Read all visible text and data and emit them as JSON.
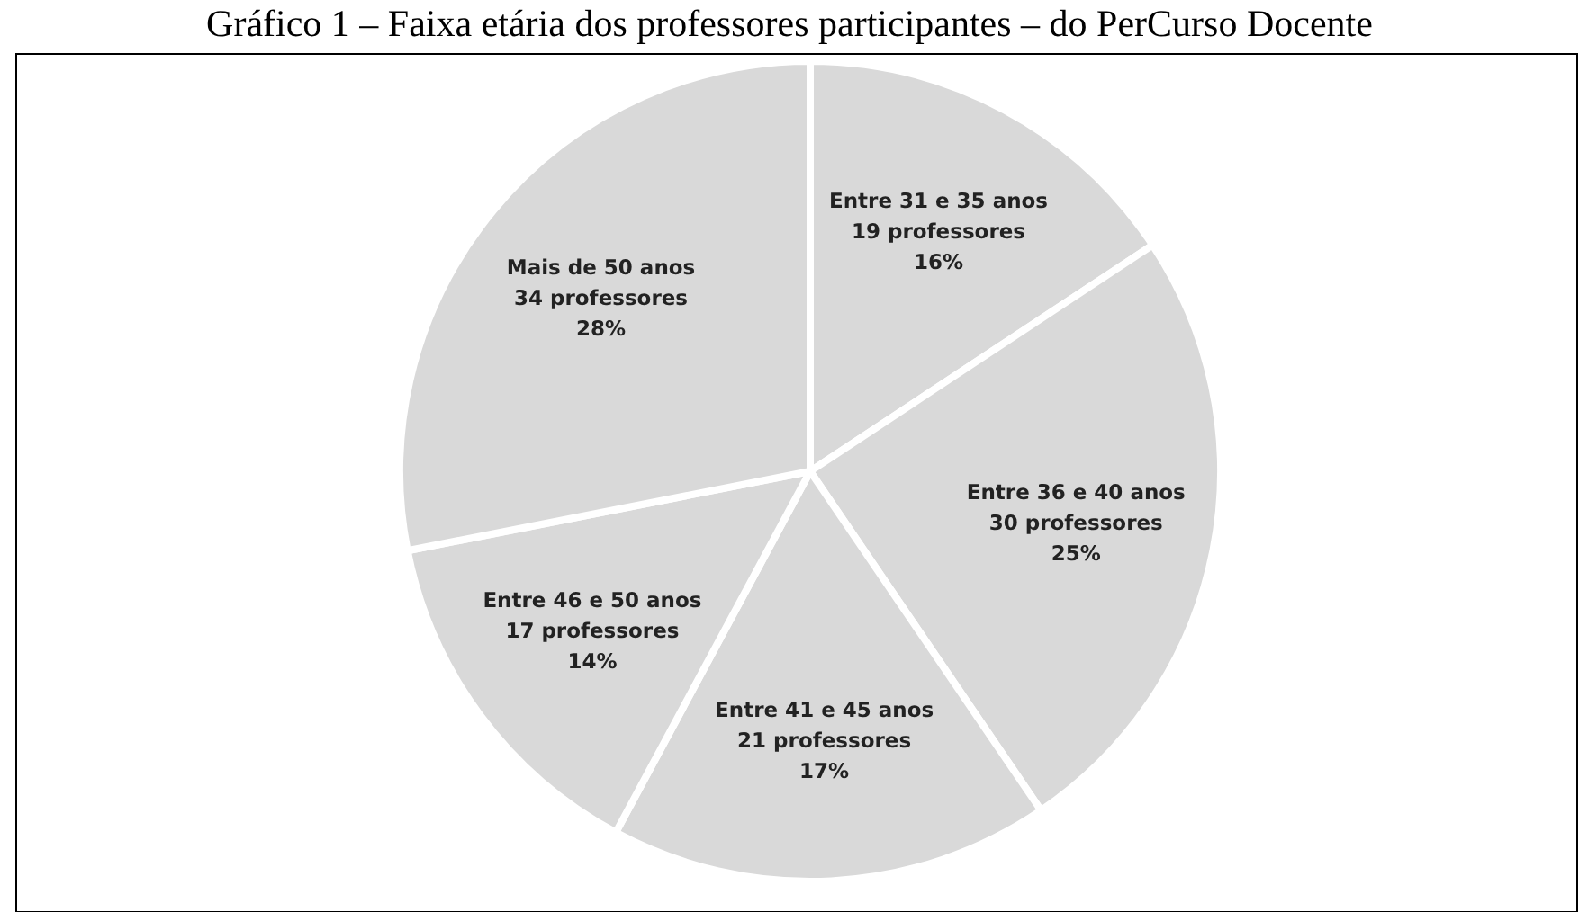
{
  "chart_data": {
    "type": "pie",
    "title": "Gráfico 1 – Faixa etária dos professores participantes – do PerCurso Docente",
    "categories": [
      "Entre 31 e 35 anos",
      "Entre 36 e 40 anos",
      "Entre 41 e 45 anos",
      "Entre 46 e 50 anos",
      "Mais de 50 anos"
    ],
    "values": [
      19,
      30,
      21,
      17,
      34
    ],
    "value_labels": [
      "19 professores\n16%",
      "30 professores\n25%",
      "21 professores\n17%",
      "17 professores\n14%",
      "34 professores\n28%"
    ],
    "colors": [
      "#d9d9d9",
      "#d9d9d9",
      "#d9d9d9",
      "#d9d9d9",
      "#d9d9d9"
    ]
  }
}
